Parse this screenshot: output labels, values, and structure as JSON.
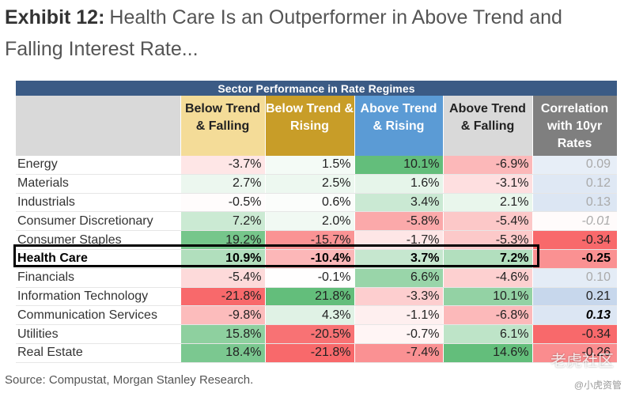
{
  "title": {
    "exhibit": "Exhibit 12:",
    "text": "Health Care Is an Outperformer in Above Trend and Falling Interest Rate..."
  },
  "source": "Source: Compustat, Morgan Stanley Research.",
  "watermark": "老虎社区",
  "watermark2": "@小虎资管",
  "chart_data": {
    "type": "table",
    "title": "Sector Performance in Rate Regimes",
    "columns": [
      "Below Trend & Falling",
      "Below Trend & Rising",
      "Above Trend & Rising",
      "Above Trend & Falling",
      "Correlation with 10yr Rates"
    ],
    "rows": [
      {
        "sector": "Energy",
        "values": [
          "-3.7%",
          "1.5%",
          "10.1%",
          "-6.9%"
        ],
        "corr": "0.09"
      },
      {
        "sector": "Materials",
        "values": [
          "2.7%",
          "2.5%",
          "1.6%",
          "-3.1%"
        ],
        "corr": "0.12"
      },
      {
        "sector": "Industrials",
        "values": [
          "-0.5%",
          "0.6%",
          "3.4%",
          "2.1%"
        ],
        "corr": "0.13"
      },
      {
        "sector": "Consumer Discretionary",
        "values": [
          "7.2%",
          "2.0%",
          "-5.8%",
          "-5.4%"
        ],
        "corr": "-0.01"
      },
      {
        "sector": "Consumer Staples",
        "values": [
          "19.2%",
          "-15.7%",
          "-1.7%",
          "-5.3%"
        ],
        "corr": "-0.34"
      },
      {
        "sector": "Health Care",
        "values": [
          "10.9%",
          "-10.4%",
          "3.7%",
          "7.2%"
        ],
        "corr": "-0.25",
        "highlight": true
      },
      {
        "sector": "Financials",
        "values": [
          "-5.4%",
          "-0.1%",
          "6.6%",
          "-4.6%"
        ],
        "corr": "0.10"
      },
      {
        "sector": "Information Technology",
        "values": [
          "-21.8%",
          "21.8%",
          "-3.3%",
          "10.1%"
        ],
        "corr": "0.21"
      },
      {
        "sector": "Communication Services",
        "values": [
          "-9.8%",
          "4.3%",
          "-1.1%",
          "-6.8%"
        ],
        "corr": "0.13"
      },
      {
        "sector": "Utilities",
        "values": [
          "15.8%",
          "-20.5%",
          "-0.7%",
          "6.1%"
        ],
        "corr": "-0.34"
      },
      {
        "sector": "Real Estate",
        "values": [
          "18.4%",
          "-21.8%",
          "-7.4%",
          "14.6%"
        ],
        "corr": "-0.26"
      }
    ],
    "colors": {
      "positive": "#63be7b",
      "negative": "#f8696b",
      "neutral": "#ffffff",
      "corr_positive": "#5a8ac6",
      "corr_negative": "#f8696b",
      "caption_bg": "#3b5b85"
    }
  }
}
